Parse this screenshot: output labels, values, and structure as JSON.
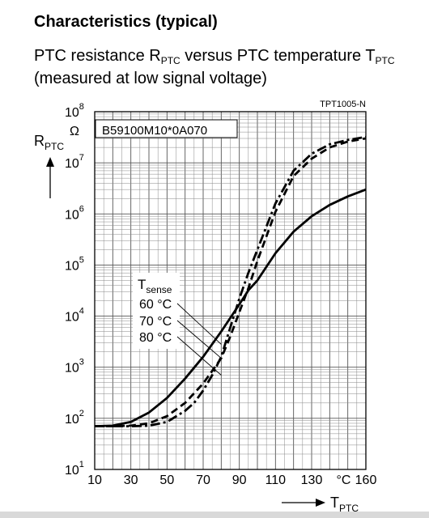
{
  "heading": "Characteristics (typical)",
  "subtitle": {
    "line1_a": "PTC resistance R",
    "line1_sub_a": "PTC",
    "line1_b": " versus PTC temperature T",
    "line1_sub_b": "PTC",
    "line2": "(measured at low signal voltage)"
  },
  "chart_data": {
    "type": "line",
    "doc_code": "TPT1005-N",
    "part_number": "B59100M10*0A070",
    "y_axis": {
      "label": "R",
      "label_sub": "PTC",
      "unit": "Ω",
      "scale": "log",
      "range": [
        10,
        100000000
      ],
      "tick_labels": [
        {
          "base": "10",
          "exp": "1",
          "value": 10
        },
        {
          "base": "10",
          "exp": "2",
          "value": 100
        },
        {
          "base": "10",
          "exp": "3",
          "value": 1000
        },
        {
          "base": "10",
          "exp": "4",
          "value": 10000
        },
        {
          "base": "10",
          "exp": "5",
          "value": 100000
        },
        {
          "base": "10",
          "exp": "6",
          "value": 1000000
        },
        {
          "base": "10",
          "exp": "7",
          "value": 10000000
        },
        {
          "base": "10",
          "exp": "8",
          "value": 100000000
        }
      ]
    },
    "x_axis": {
      "label": "T",
      "label_sub": "PTC",
      "unit": "°C",
      "scale": "linear",
      "range": [
        10,
        160
      ],
      "tick_labels": [
        "10",
        "30",
        "50",
        "70",
        "90",
        "110",
        "130",
        "160"
      ],
      "tick_values": [
        10,
        30,
        50,
        70,
        90,
        110,
        130,
        160
      ]
    },
    "grid": true,
    "legend": {
      "title": "T",
      "title_sub": "sense",
      "placement": "center-left",
      "entries": [
        "60 °C",
        "70 °C",
        "80 °C"
      ]
    },
    "series": [
      {
        "name": "60 °C",
        "style": "solid",
        "x": [
          10,
          20,
          30,
          40,
          50,
          60,
          70,
          80,
          90,
          95,
          100,
          110,
          120,
          130,
          140,
          150,
          160
        ],
        "y": [
          70,
          72,
          85,
          130,
          250,
          600,
          1600,
          5000,
          17000,
          32000,
          50000,
          170000,
          450000,
          900000,
          1500000,
          2200000,
          3000000
        ]
      },
      {
        "name": "70 °C",
        "style": "dashed",
        "x": [
          10,
          20,
          30,
          40,
          50,
          60,
          70,
          80,
          85,
          90,
          95,
          100,
          110,
          120,
          130,
          140,
          150,
          160
        ],
        "y": [
          70,
          70,
          72,
          80,
          110,
          200,
          480,
          1500,
          4000,
          12000,
          35000,
          120000,
          1100000,
          5500000,
          12000000,
          20000000,
          26000000,
          30000000
        ]
      },
      {
        "name": "80 °C",
        "style": "dash-dot",
        "x": [
          10,
          20,
          30,
          40,
          50,
          60,
          65,
          70,
          75,
          80,
          85,
          90,
          95,
          100,
          110,
          120,
          130,
          140,
          150,
          160
        ],
        "y": [
          70,
          70,
          70,
          72,
          85,
          140,
          200,
          350,
          700,
          1600,
          6000,
          22000,
          70000,
          200000,
          1600000,
          7000000,
          15000000,
          23000000,
          28000000,
          32000000
        ]
      }
    ]
  }
}
